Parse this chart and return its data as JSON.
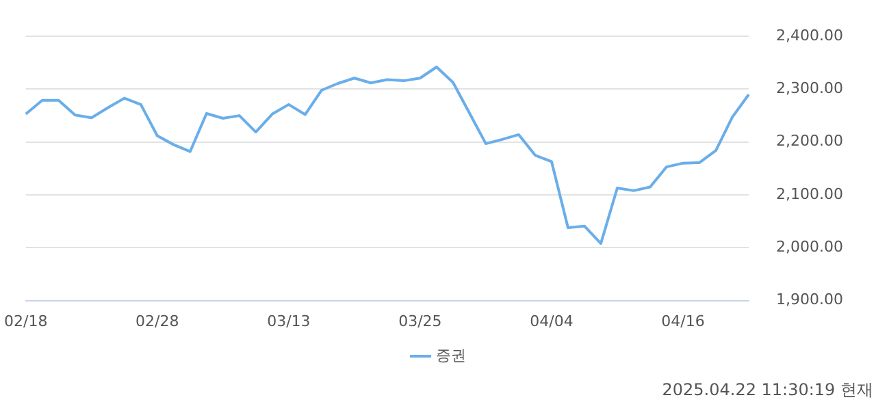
{
  "chart_data": {
    "type": "line",
    "categories": [
      "02/18",
      null,
      null,
      null,
      null,
      null,
      null,
      null,
      "02/28",
      null,
      null,
      null,
      null,
      null,
      null,
      null,
      "03/13",
      null,
      null,
      null,
      null,
      null,
      null,
      null,
      "03/25",
      null,
      null,
      null,
      null,
      null,
      null,
      null,
      "04/04",
      null,
      null,
      null,
      null,
      null,
      null,
      null,
      "04/16",
      null,
      null,
      null,
      null
    ],
    "series": [
      {
        "name": "증권",
        "color": "#6aaee9",
        "values": [
          2253,
          2279,
          2279,
          2251,
          2246,
          2265,
          2283,
          2271,
          2212,
          2195,
          2182,
          2254,
          2245,
          2250,
          2219,
          2253,
          2271,
          2252,
          2298,
          2311,
          2321,
          2312,
          2318,
          2316,
          2321,
          2342,
          2313,
          2255,
          2197,
          2205,
          2214,
          2175,
          2163,
          2038,
          2041,
          2008,
          2113,
          2108,
          2115,
          2153,
          2160,
          2161,
          2184,
          2247,
          2290
        ]
      }
    ],
    "ylim": [
      1900,
      2400
    ],
    "yticks": [
      {
        "value": 1900,
        "label": "1,900.00"
      },
      {
        "value": 2000,
        "label": "2,000.00"
      },
      {
        "value": 2100,
        "label": "2,100.00"
      },
      {
        "value": 2200,
        "label": "2,200.00"
      },
      {
        "value": 2300,
        "label": "2,300.00"
      },
      {
        "value": 2400,
        "label": "2,400.00"
      }
    ],
    "grid": "y",
    "legend": "bottom",
    "marker": "none",
    "line_style": "solid",
    "annotations": [
      "2025.04.22 11:30:19 현재"
    ]
  }
}
